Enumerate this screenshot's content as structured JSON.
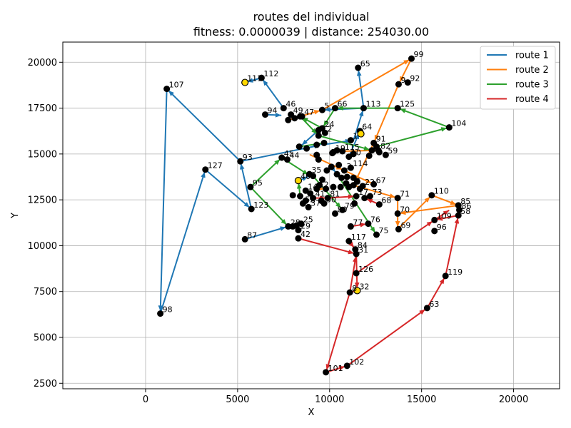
{
  "chart_data": {
    "type": "scatter",
    "title_line1": "routes del individual",
    "title_line2": "fitness: 0.0000039 | distance: 254030.00",
    "xlabel": "X",
    "ylabel": "Y",
    "xlim": [
      -4500,
      22500
    ],
    "ylim": [
      2200,
      21100
    ],
    "xticks": [
      0,
      5000,
      10000,
      15000,
      20000
    ],
    "yticks": [
      2500,
      5000,
      7500,
      10000,
      12500,
      15000,
      17500,
      20000
    ],
    "grid": true,
    "legend_position": "top-right",
    "depots": [
      {
        "x": 5400,
        "y": 18900
      },
      {
        "x": 11700,
        "y": 16100
      },
      {
        "x": 8300,
        "y": 13550
      },
      {
        "x": 11500,
        "y": 7550
      }
    ],
    "nodes": [
      {
        "id": "107",
        "x": 1150,
        "y": 18550
      },
      {
        "id": "111",
        "x": 5400,
        "y": 18900
      },
      {
        "id": "112",
        "x": 6300,
        "y": 19150
      },
      {
        "id": "46",
        "x": 7500,
        "y": 17500
      },
      {
        "id": "94",
        "x": 6500,
        "y": 17150
      },
      {
        "id": "49",
        "x": 7900,
        "y": 17150
      },
      {
        "id": "47",
        "x": 8500,
        "y": 17050
      },
      {
        "id": "65",
        "x": 11550,
        "y": 19700
      },
      {
        "id": "99",
        "x": 14450,
        "y": 20200
      },
      {
        "id": "92",
        "x": 14250,
        "y": 18900
      },
      {
        "id": "9",
        "x": 13750,
        "y": 18800
      },
      {
        "id": "66",
        "x": 10300,
        "y": 17500
      },
      {
        "id": "5",
        "x": 9600,
        "y": 17400
      },
      {
        "id": "113",
        "x": 11850,
        "y": 17500
      },
      {
        "id": "125",
        "x": 13700,
        "y": 17500
      },
      {
        "id": "104",
        "x": 16500,
        "y": 16450
      },
      {
        "id": "24",
        "x": 9600,
        "y": 16400
      },
      {
        "id": "2",
        "x": 9750,
        "y": 16150
      },
      {
        "id": "64",
        "x": 11650,
        "y": 16250
      },
      {
        "id": "1",
        "x": 11150,
        "y": 15750
      },
      {
        "id": "91",
        "x": 12400,
        "y": 15600
      },
      {
        "id": "82",
        "x": 12650,
        "y": 15200
      },
      {
        "id": "59",
        "x": 13050,
        "y": 14950
      },
      {
        "id": "93",
        "x": 5150,
        "y": 14600
      },
      {
        "id": "127",
        "x": 3250,
        "y": 14150
      },
      {
        "id": "45",
        "x": 7400,
        "y": 14800
      },
      {
        "id": "44",
        "x": 7700,
        "y": 14700
      },
      {
        "id": "19",
        "x": 10200,
        "y": 15100
      },
      {
        "id": "115",
        "x": 10700,
        "y": 15150
      },
      {
        "id": "10",
        "x": 11050,
        "y": 14850
      },
      {
        "id": "35",
        "x": 8900,
        "y": 13900
      },
      {
        "id": "40",
        "x": 8300,
        "y": 13550
      },
      {
        "id": "95",
        "x": 5700,
        "y": 13200
      },
      {
        "id": "123",
        "x": 5750,
        "y": 12000
      },
      {
        "id": "67",
        "x": 12400,
        "y": 13350
      },
      {
        "id": "110",
        "x": 15550,
        "y": 12750
      },
      {
        "id": "71",
        "x": 13700,
        "y": 12600
      },
      {
        "id": "73",
        "x": 12200,
        "y": 12700
      },
      {
        "id": "68",
        "x": 12700,
        "y": 12250
      },
      {
        "id": "85",
        "x": 17000,
        "y": 12200
      },
      {
        "id": "86",
        "x": 17050,
        "y": 11950
      },
      {
        "id": "58",
        "x": 17000,
        "y": 11650
      },
      {
        "id": "70",
        "x": 13700,
        "y": 11750
      },
      {
        "id": "109",
        "x": 15700,
        "y": 11400
      },
      {
        "id": "96",
        "x": 15700,
        "y": 10800
      },
      {
        "id": "69",
        "x": 13750,
        "y": 10900
      },
      {
        "id": "75",
        "x": 12550,
        "y": 10600
      },
      {
        "id": "76",
        "x": 12100,
        "y": 11200
      },
      {
        "id": "77",
        "x": 11150,
        "y": 11050
      },
      {
        "id": "79",
        "x": 10700,
        "y": 11950
      },
      {
        "id": "80",
        "x": 10300,
        "y": 11750
      },
      {
        "id": "81",
        "x": 9900,
        "y": 12600
      },
      {
        "id": "87",
        "x": 5400,
        "y": 10350
      },
      {
        "id": "28",
        "x": 7750,
        "y": 11050
      },
      {
        "id": "25",
        "x": 8450,
        "y": 11200
      },
      {
        "id": "29",
        "x": 8300,
        "y": 10850
      },
      {
        "id": "42",
        "x": 8300,
        "y": 10400
      },
      {
        "id": "117",
        "x": 11050,
        "y": 10250
      },
      {
        "id": "84",
        "x": 11400,
        "y": 9800
      },
      {
        "id": "31",
        "x": 11450,
        "y": 9550
      },
      {
        "id": "126",
        "x": 11450,
        "y": 8500
      },
      {
        "id": "32",
        "x": 11500,
        "y": 7550
      },
      {
        "id": "8",
        "x": 11100,
        "y": 7450
      },
      {
        "id": "63",
        "x": 15300,
        "y": 6600
      },
      {
        "id": "119",
        "x": 16300,
        "y": 8350
      },
      {
        "id": "98",
        "x": 800,
        "y": 6300
      },
      {
        "id": "101",
        "x": 9800,
        "y": 3100
      },
      {
        "id": "102",
        "x": 10950,
        "y": 3450
      },
      {
        "id": "3",
        "x": 10800,
        "y": 14100
      },
      {
        "id": "6",
        "x": 11300,
        "y": 13300
      },
      {
        "id": "12",
        "x": 9300,
        "y": 13100
      },
      {
        "id": "14",
        "x": 8700,
        "y": 13000
      },
      {
        "id": "17",
        "x": 11450,
        "y": 12700
      },
      {
        "id": "22",
        "x": 11800,
        "y": 13250
      },
      {
        "id": "30",
        "x": 9700,
        "y": 12300
      },
      {
        "id": "37",
        "x": 8850,
        "y": 12100
      },
      {
        "id": "41",
        "x": 9100,
        "y": 12600
      },
      {
        "id": "52",
        "x": 8550,
        "y": 12300
      },
      {
        "id": "114",
        "x": 11150,
        "y": 14250
      }
    ],
    "unlabeled_points": [
      {
        "x": 7750,
        "y": 16850
      },
      {
        "x": 8100,
        "y": 16950
      },
      {
        "x": 8400,
        "y": 17050
      },
      {
        "x": 9400,
        "y": 16300
      },
      {
        "x": 9400,
        "y": 16000
      },
      {
        "x": 9700,
        "y": 15600
      },
      {
        "x": 9300,
        "y": 15500
      },
      {
        "x": 8750,
        "y": 15300
      },
      {
        "x": 8350,
        "y": 15400
      },
      {
        "x": 10150,
        "y": 15050
      },
      {
        "x": 10400,
        "y": 15200
      },
      {
        "x": 11300,
        "y": 15000
      },
      {
        "x": 12300,
        "y": 15200
      },
      {
        "x": 12550,
        "y": 15400
      },
      {
        "x": 12150,
        "y": 14900
      },
      {
        "x": 12700,
        "y": 15100
      },
      {
        "x": 10500,
        "y": 14400
      },
      {
        "x": 10100,
        "y": 14300
      },
      {
        "x": 9850,
        "y": 14100
      },
      {
        "x": 9400,
        "y": 14700
      },
      {
        "x": 9300,
        "y": 14950
      },
      {
        "x": 9100,
        "y": 13800
      },
      {
        "x": 9600,
        "y": 13600
      },
      {
        "x": 10400,
        "y": 13900
      },
      {
        "x": 10650,
        "y": 13700
      },
      {
        "x": 10950,
        "y": 13750
      },
      {
        "x": 11300,
        "y": 13700
      },
      {
        "x": 10900,
        "y": 13400
      },
      {
        "x": 10600,
        "y": 13200
      },
      {
        "x": 11050,
        "y": 13200
      },
      {
        "x": 11500,
        "y": 13500
      },
      {
        "x": 11650,
        "y": 13100
      },
      {
        "x": 10200,
        "y": 13200
      },
      {
        "x": 9800,
        "y": 13100
      },
      {
        "x": 9450,
        "y": 13300
      },
      {
        "x": 8950,
        "y": 12850
      },
      {
        "x": 8400,
        "y": 12700
      },
      {
        "x": 8000,
        "y": 12750
      },
      {
        "x": 8700,
        "y": 12450
      },
      {
        "x": 9550,
        "y": 12450
      },
      {
        "x": 11350,
        "y": 12300
      },
      {
        "x": 11900,
        "y": 12600
      },
      {
        "x": 8000,
        "y": 11050
      },
      {
        "x": 8200,
        "y": 11100
      }
    ],
    "series": [
      {
        "name": "route 1",
        "color": "#1f77b4",
        "points": [
          [
            1150,
            18550
          ],
          [
            800,
            6300
          ],
          [
            3250,
            14150
          ],
          [
            5750,
            12000
          ],
          [
            5150,
            14600
          ],
          [
            1150,
            18550
          ]
        ],
        "extra_paths": [
          [
            [
              5150,
              14600
            ],
            [
              9600,
              15500
            ],
            [
              11300,
              15750
            ],
            [
              11850,
              17500
            ],
            [
              11550,
              19700
            ]
          ],
          [
            [
              5400,
              10350
            ],
            [
              7750,
              11050
            ]
          ],
          [
            [
              6300,
              19150
            ],
            [
              5400,
              18900
            ]
          ],
          [
            [
              6300,
              19150
            ],
            [
              6300,
              19150
            ]
          ],
          [
            [
              7500,
              17500
            ],
            [
              6300,
              19150
            ]
          ],
          [
            [
              6500,
              17150
            ],
            [
              7500,
              17100
            ]
          ],
          [
            [
              11850,
              17500
            ],
            [
              9600,
              17400
            ]
          ],
          [
            [
              9400,
              16300
            ],
            [
              8400,
              15400
            ]
          ],
          [
            [
              8750,
              15300
            ],
            [
              9700,
              15600
            ]
          ],
          [
            [
              10100,
              14300
            ],
            [
              10400,
              13900
            ]
          ],
          [
            [
              11050,
              14850
            ],
            [
              11650,
              16250
            ]
          ],
          [
            [
              8300,
              13550
            ],
            [
              8950,
              13800
            ]
          ]
        ]
      },
      {
        "name": "route 2",
        "color": "#ff7f0e",
        "points": [
          [
            9600,
            17400
          ],
          [
            14450,
            20200
          ],
          [
            13750,
            18800
          ],
          [
            12400,
            15600
          ],
          [
            11300,
            13300
          ],
          [
            13700,
            12600
          ],
          [
            13700,
            10900
          ],
          [
            15550,
            12750
          ],
          [
            17000,
            12200
          ],
          [
            13700,
            11750
          ]
        ],
        "extra_paths": [
          [
            [
              7750,
              16850
            ],
            [
              9600,
              17400
            ]
          ],
          [
            [
              8950,
              14950
            ],
            [
              10800,
              14100
            ],
            [
              12400,
              13350
            ]
          ],
          [
            [
              10700,
              15150
            ],
            [
              12650,
              15200
            ]
          ],
          [
            [
              9300,
              13100
            ],
            [
              9800,
              13100
            ]
          ]
        ]
      },
      {
        "name": "route 3",
        "color": "#2ca02c",
        "points": [
          [
            16500,
            16450
          ],
          [
            13700,
            17500
          ],
          [
            10300,
            17500
          ],
          [
            9600,
            16400
          ],
          [
            8400,
            17050
          ],
          [
            9400,
            16000
          ],
          [
            12300,
            15200
          ],
          [
            12550,
            15400
          ]
        ],
        "extra_paths": [
          [
            [
              12550,
              15400
            ],
            [
              16500,
              16450
            ]
          ],
          [
            [
              5700,
              13200
            ],
            [
              7400,
              14800
            ],
            [
              8950,
              13800
            ]
          ],
          [
            [
              5700,
              13200
            ],
            [
              7750,
              11050
            ]
          ],
          [
            [
              8400,
              12700
            ],
            [
              8300,
              13550
            ]
          ],
          [
            [
              10400,
              13900
            ],
            [
              12550,
              10600
            ]
          ],
          [
            [
              9100,
              13800
            ],
            [
              10700,
              11950
            ]
          ],
          [
            [
              8350,
              15400
            ],
            [
              9700,
              15600
            ]
          ]
        ]
      },
      {
        "name": "route 4",
        "color": "#d62728",
        "points": [
          [
            8300,
            10400
          ],
          [
            11450,
            9550
          ],
          [
            11500,
            7550
          ],
          [
            11100,
            7450
          ],
          [
            9800,
            3100
          ],
          [
            10950,
            3450
          ],
          [
            15300,
            6600
          ],
          [
            16300,
            8350
          ],
          [
            17000,
            11650
          ],
          [
            15700,
            11400
          ]
        ],
        "extra_paths": [
          [
            [
              11100,
              7450
            ],
            [
              11450,
              9550
            ]
          ],
          [
            [
              11450,
              8500
            ],
            [
              15700,
              11400
            ],
            [
              16600,
              12000
            ]
          ],
          [
            [
              11050,
              10250
            ],
            [
              11400,
              9800
            ]
          ],
          [
            [
              11150,
              11050
            ],
            [
              12100,
              11200
            ]
          ],
          [
            [
              12700,
              12250
            ],
            [
              11900,
              12600
            ]
          ],
          [
            [
              9900,
              12600
            ],
            [
              11450,
              12700
            ]
          ],
          [
            [
              9100,
              12600
            ],
            [
              9900,
              12600
            ]
          ]
        ]
      }
    ],
    "legend": [
      {
        "label": "route 1",
        "color": "#1f77b4"
      },
      {
        "label": "route 2",
        "color": "#ff7f0e"
      },
      {
        "label": "route 3",
        "color": "#2ca02c"
      },
      {
        "label": "route 4",
        "color": "#d62728"
      }
    ]
  }
}
